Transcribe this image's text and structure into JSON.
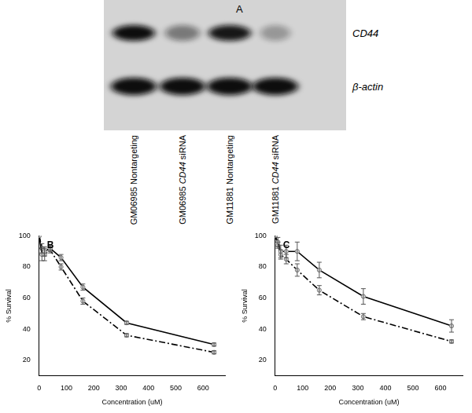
{
  "blot": {
    "panel": "A",
    "bands": [
      "CD44",
      "β-actin"
    ],
    "lanes": [
      "GM06985 Nontargeting",
      "GM06985 CD44 siRNA",
      "GM11881 Nontargeting",
      "GM11881 CD44 siRNA"
    ]
  },
  "chart_data": [
    {
      "type": "line",
      "title": "B",
      "x_label": "Concentration (uM)",
      "y_label": "% Survival",
      "x": [
        0,
        10,
        20,
        40,
        80,
        160,
        320,
        640
      ],
      "xlim": [
        0,
        680
      ],
      "xticks": [
        0,
        100,
        200,
        300,
        400,
        500,
        600
      ],
      "ylim": [
        10,
        100
      ],
      "yticks": [
        20,
        40,
        60,
        80,
        100
      ],
      "grid": false,
      "series": [
        {
          "color": "#000000",
          "line_style": "solid",
          "marker": "circle",
          "values": [
            100,
            88,
            90,
            92,
            86,
            67,
            44,
            30
          ],
          "errors": [
            0,
            4,
            3,
            2,
            2,
            2,
            1,
            1
          ]
        },
        {
          "color": "#000000",
          "line_style": "dashdot",
          "marker": "circle",
          "values": [
            100,
            92,
            88,
            91,
            80,
            58,
            36,
            25
          ],
          "errors": [
            0,
            3,
            4,
            2,
            2,
            2,
            1,
            1
          ]
        }
      ]
    },
    {
      "type": "line",
      "title": "C",
      "x_label": "Concentration (uM)",
      "y_label": "% Survival",
      "x": [
        0,
        10,
        20,
        40,
        80,
        160,
        320,
        640
      ],
      "xlim": [
        0,
        680
      ],
      "xticks": [
        0,
        100,
        200,
        300,
        400,
        500,
        600
      ],
      "ylim": [
        10,
        100
      ],
      "yticks": [
        20,
        40,
        60,
        80,
        100
      ],
      "grid": false,
      "series": [
        {
          "color": "#000000",
          "line_style": "solid",
          "marker": "circle",
          "values": [
            100,
            96,
            90,
            90,
            90,
            78,
            61,
            42
          ],
          "errors": [
            0,
            3,
            4,
            4,
            6,
            5,
            5,
            4
          ]
        },
        {
          "color": "#000000",
          "line_style": "dashdot",
          "marker": "circle",
          "values": [
            100,
            94,
            88,
            85,
            78,
            65,
            48,
            32
          ],
          "errors": [
            0,
            2,
            3,
            3,
            4,
            3,
            2,
            1
          ]
        }
      ]
    }
  ]
}
